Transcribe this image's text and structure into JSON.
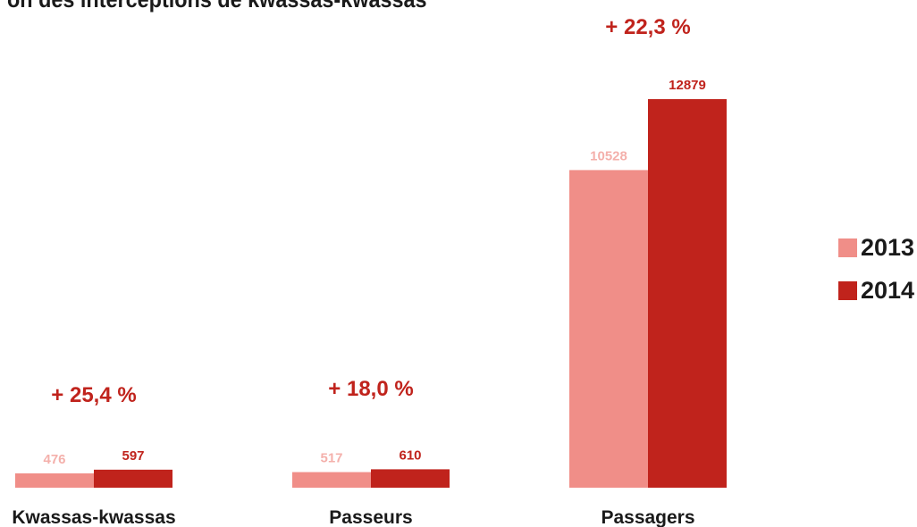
{
  "chart_data": {
    "type": "bar",
    "title": "on des interceptions de kwassas-kwassas",
    "categories": [
      "Kwassas-kwassas",
      "Passeurs",
      "Passagers"
    ],
    "series": [
      {
        "name": "2013",
        "values": [
          476,
          517,
          10528
        ],
        "color": "#f08e88"
      },
      {
        "name": "2014",
        "values": [
          597,
          610,
          12879
        ],
        "color": "#c0231c"
      }
    ],
    "annotations": [
      "+ 25,4 %",
      "+ 18,0 %",
      "+ 22,3 %"
    ],
    "ylim": [
      0,
      14000
    ],
    "grid": false,
    "legend": "right"
  }
}
